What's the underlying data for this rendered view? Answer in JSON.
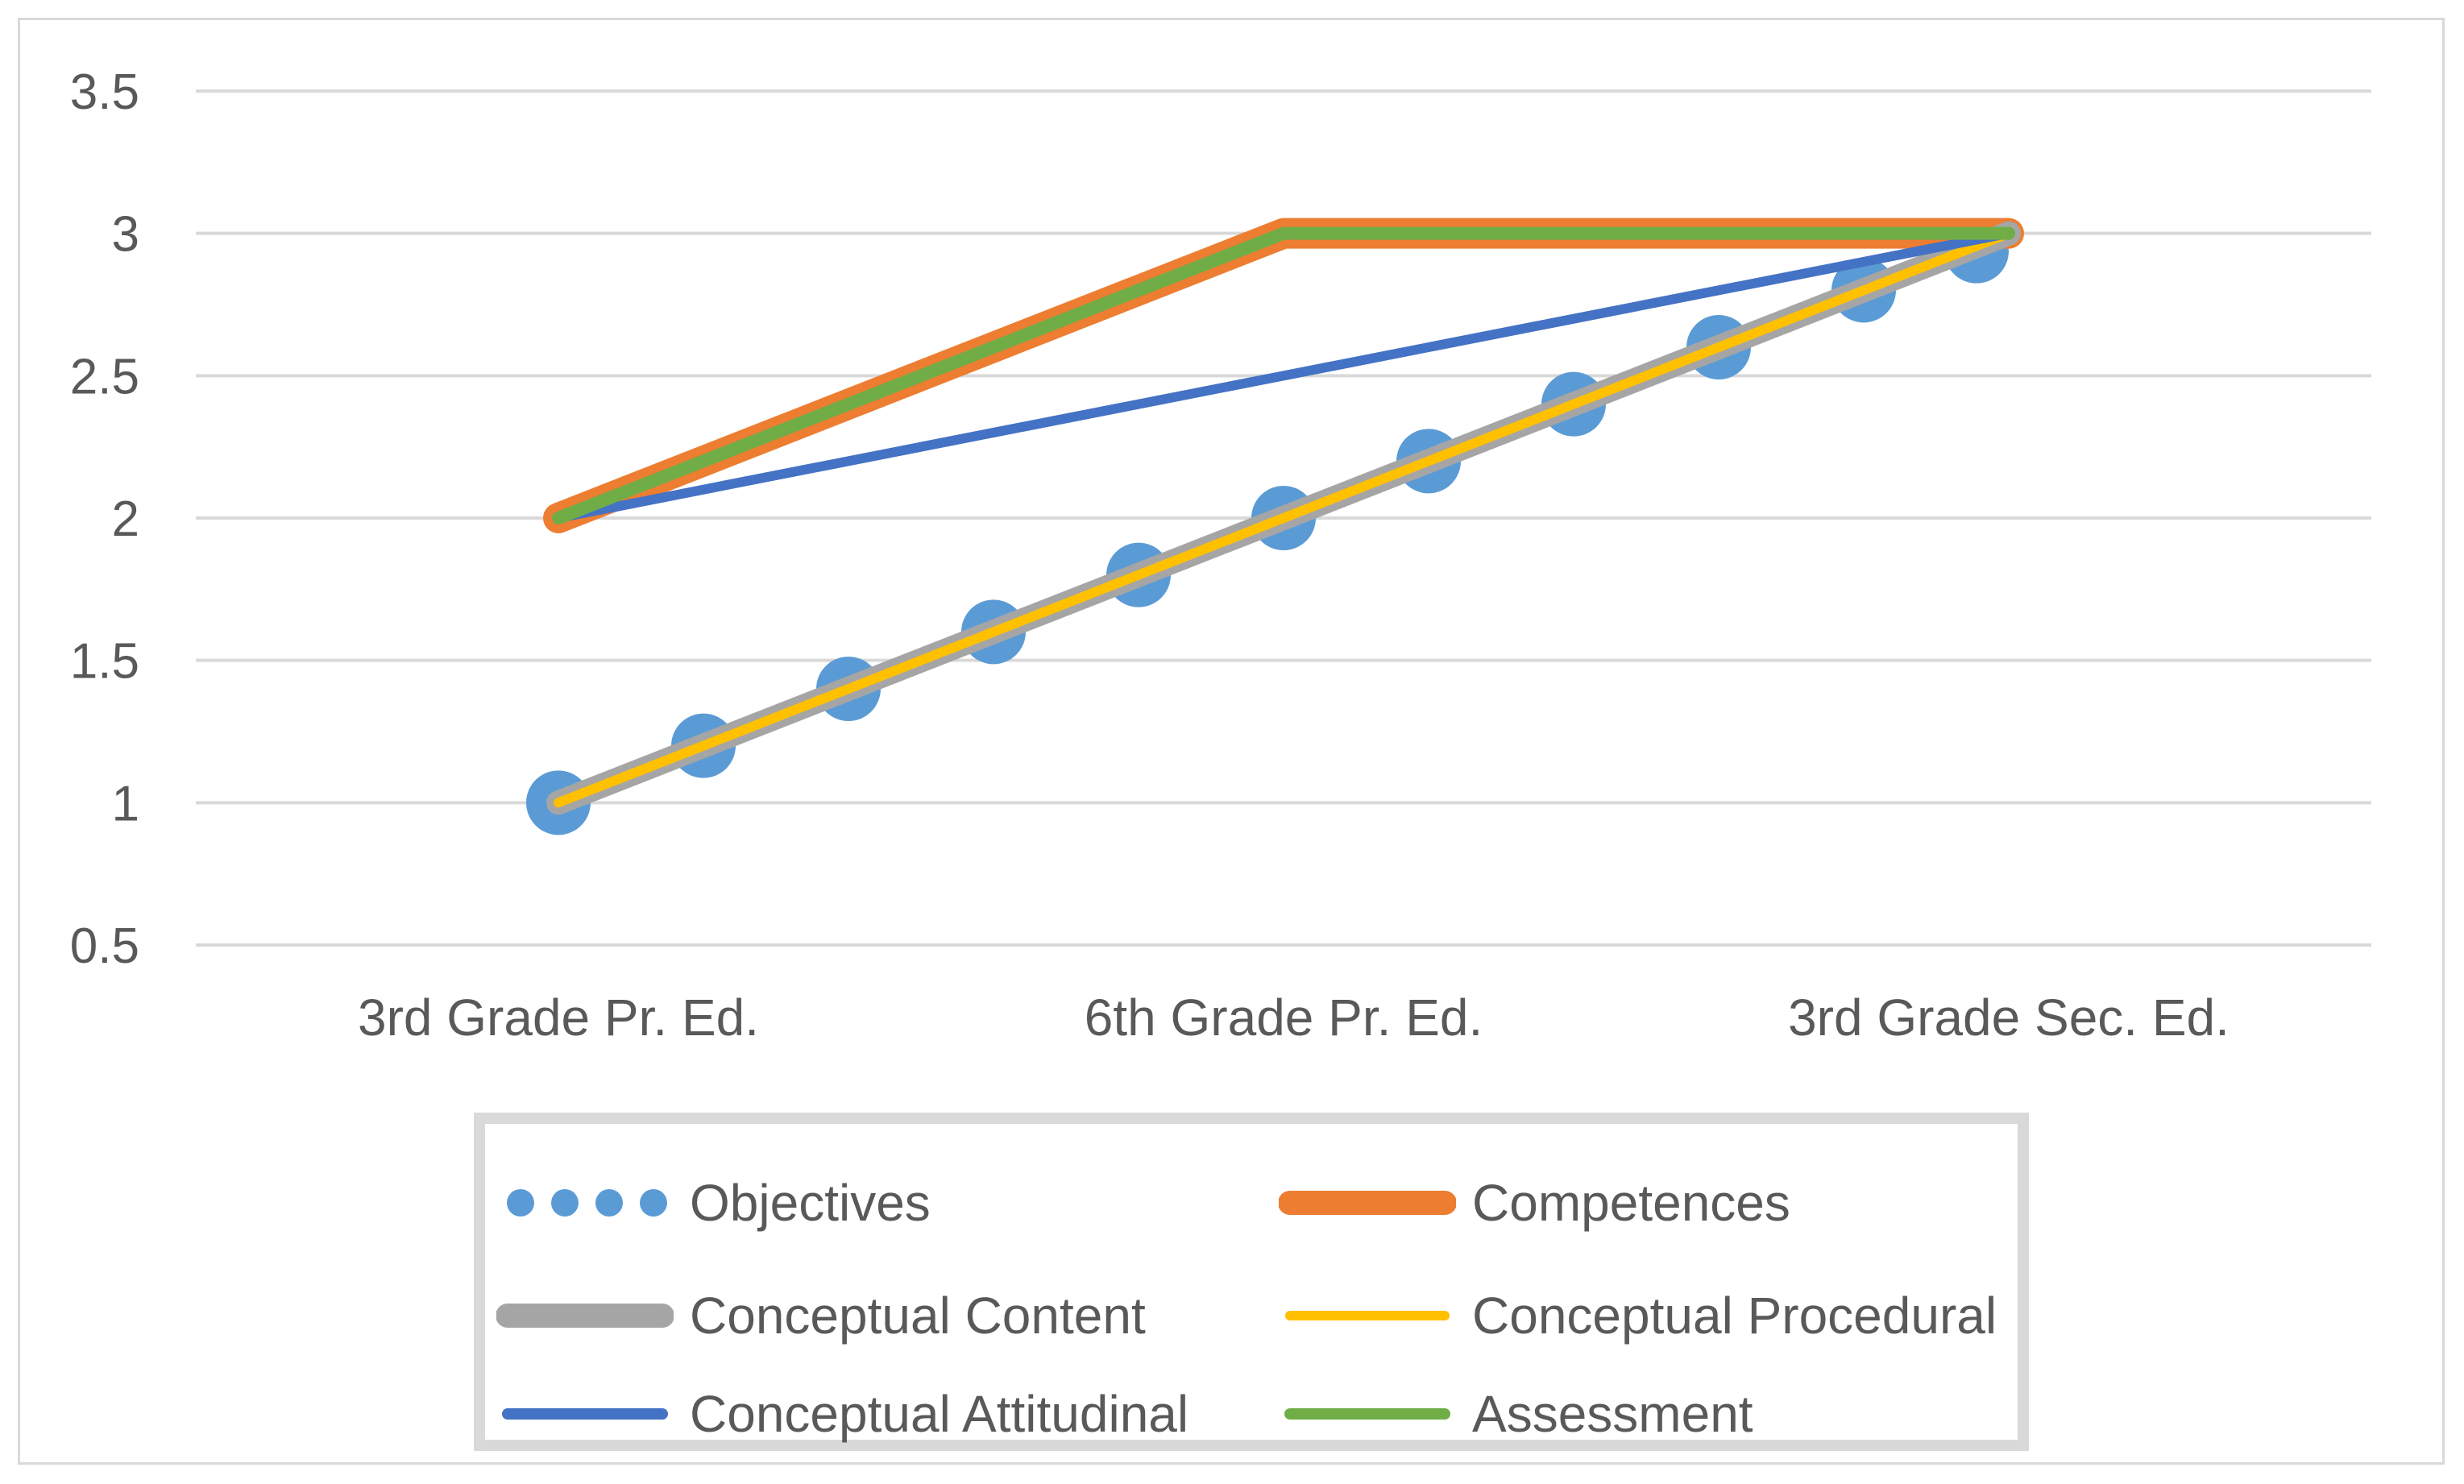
{
  "chart_data": {
    "type": "line",
    "title": "",
    "xlabel": "",
    "ylabel": "",
    "categories": [
      "3rd Grade Pr. Ed.",
      "6th Grade Pr. Ed.",
      "3rd Grade Sec. Ed."
    ],
    "ylim": [
      0.5,
      3.5
    ],
    "yticks": [
      "0.5",
      "1",
      "1.5",
      "2",
      "2.5",
      "3",
      "3.5"
    ],
    "grid": true,
    "legend_position": "bottom",
    "series": [
      {
        "name": "Objectives",
        "values": [
          1,
          2,
          3
        ],
        "color": "#5b9bd5",
        "style": "dotted"
      },
      {
        "name": "Competences",
        "values": [
          2,
          3,
          3
        ],
        "color": "#ed7d31",
        "style": "solid"
      },
      {
        "name": "Conceptual Content",
        "values": [
          1,
          2,
          3
        ],
        "color": "#a5a5a5",
        "style": "solid"
      },
      {
        "name": "Conceptual Procedural",
        "values": [
          1,
          2,
          3
        ],
        "color": "#ffc000",
        "style": "solid"
      },
      {
        "name": "Conceptual Attitudinal",
        "values": [
          2,
          2.5,
          3
        ],
        "color": "#4472c4",
        "style": "solid"
      },
      {
        "name": "Assessment",
        "values": [
          2,
          3,
          3
        ],
        "color": "#70ad47",
        "style": "solid"
      }
    ]
  }
}
